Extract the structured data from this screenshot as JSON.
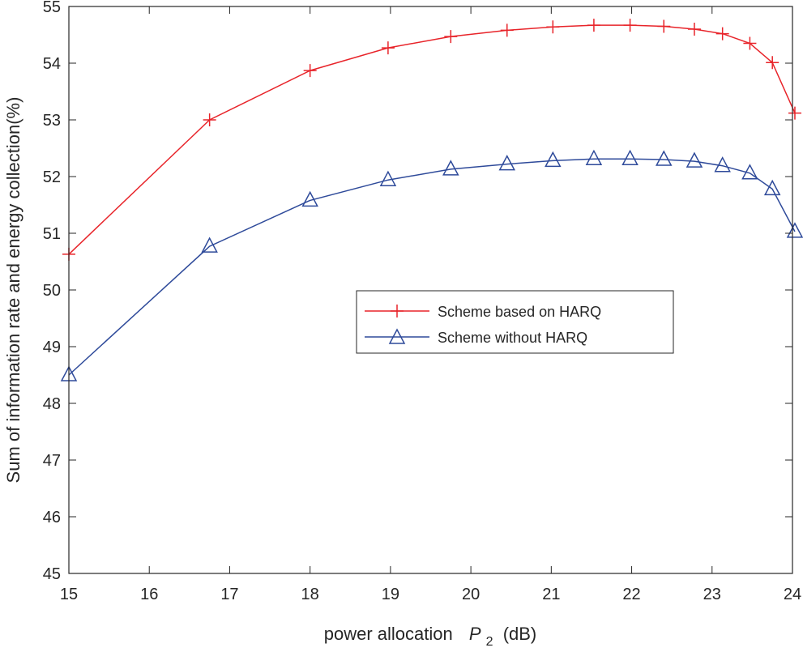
{
  "chart_data": {
    "type": "line",
    "title": "",
    "xlabel_prefix": "power allocation",
    "xlabel_symbol": "P",
    "xlabel_subscript": "2",
    "xlabel_suffix": "(dB)",
    "ylabel": "Sum of information rate and energy collection(%)",
    "xlim": [
      15,
      24
    ],
    "ylim": [
      45,
      55
    ],
    "xticks": [
      "15",
      "16",
      "17",
      "18",
      "19",
      "20",
      "21",
      "22",
      "23",
      "24"
    ],
    "yticks": [
      "45",
      "46",
      "47",
      "48",
      "49",
      "50",
      "51",
      "52",
      "53",
      "54",
      "55"
    ],
    "grid": false,
    "legend_position": "center-right",
    "series": [
      {
        "name": "Scheme based on HARQ",
        "color": "#e8242a",
        "marker": "plus",
        "x": [
          15,
          16.75,
          18,
          18.97,
          19.75,
          20.45,
          21.02,
          21.53,
          21.98,
          22.4,
          22.78,
          23.13,
          23.47,
          23.75,
          24.03
        ],
        "y": [
          50.63,
          53.0,
          53.87,
          54.27,
          54.47,
          54.58,
          54.64,
          54.67,
          54.67,
          54.65,
          54.6,
          54.52,
          54.35,
          54.01,
          53.12
        ]
      },
      {
        "name": "Scheme without HARQ",
        "color": "#2e4a9a",
        "marker": "triangle",
        "x": [
          15,
          16.75,
          18,
          18.97,
          19.75,
          20.45,
          21.02,
          21.53,
          21.98,
          22.4,
          22.78,
          23.13,
          23.47,
          23.75,
          24.03
        ],
        "y": [
          48.5,
          50.77,
          51.58,
          51.94,
          52.13,
          52.22,
          52.28,
          52.31,
          52.31,
          52.3,
          52.27,
          52.19,
          52.06,
          51.78,
          51.03
        ]
      }
    ]
  }
}
